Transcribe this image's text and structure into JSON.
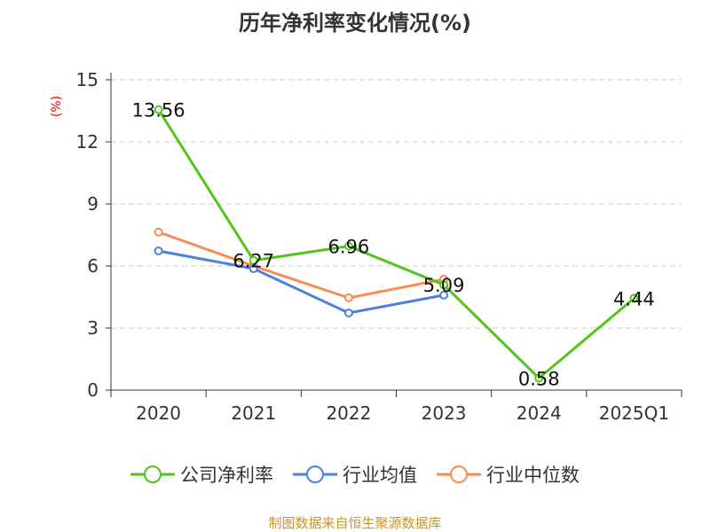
{
  "chart_data": {
    "type": "line",
    "title": "历年净利率变化情况(%)",
    "ylabel": "(%)",
    "xlabel": "",
    "categories": [
      "2020",
      "2021",
      "2022",
      "2023",
      "2024",
      "2025Q1"
    ],
    "ylim": [
      0,
      15
    ],
    "yticks": [
      0,
      3,
      6,
      9,
      12,
      15
    ],
    "grid": true,
    "legend_position": "bottom",
    "series": [
      {
        "name": "公司净利率",
        "color": "#52c41a",
        "values": [
          13.56,
          6.27,
          6.96,
          5.09,
          0.58,
          4.44
        ],
        "labels": [
          "13.56",
          "6.27",
          "6.96",
          "5.09",
          "0.58",
          "4.44"
        ]
      },
      {
        "name": "行业均值",
        "color": "#4e7fe0",
        "values": [
          6.73,
          5.87,
          3.73,
          4.59,
          null,
          null
        ]
      },
      {
        "name": "行业中位数",
        "color": "#fc8a52",
        "values": [
          7.64,
          6.0,
          4.46,
          5.36,
          null,
          null
        ]
      }
    ]
  },
  "source": "制图数据来自恒生聚源数据库"
}
